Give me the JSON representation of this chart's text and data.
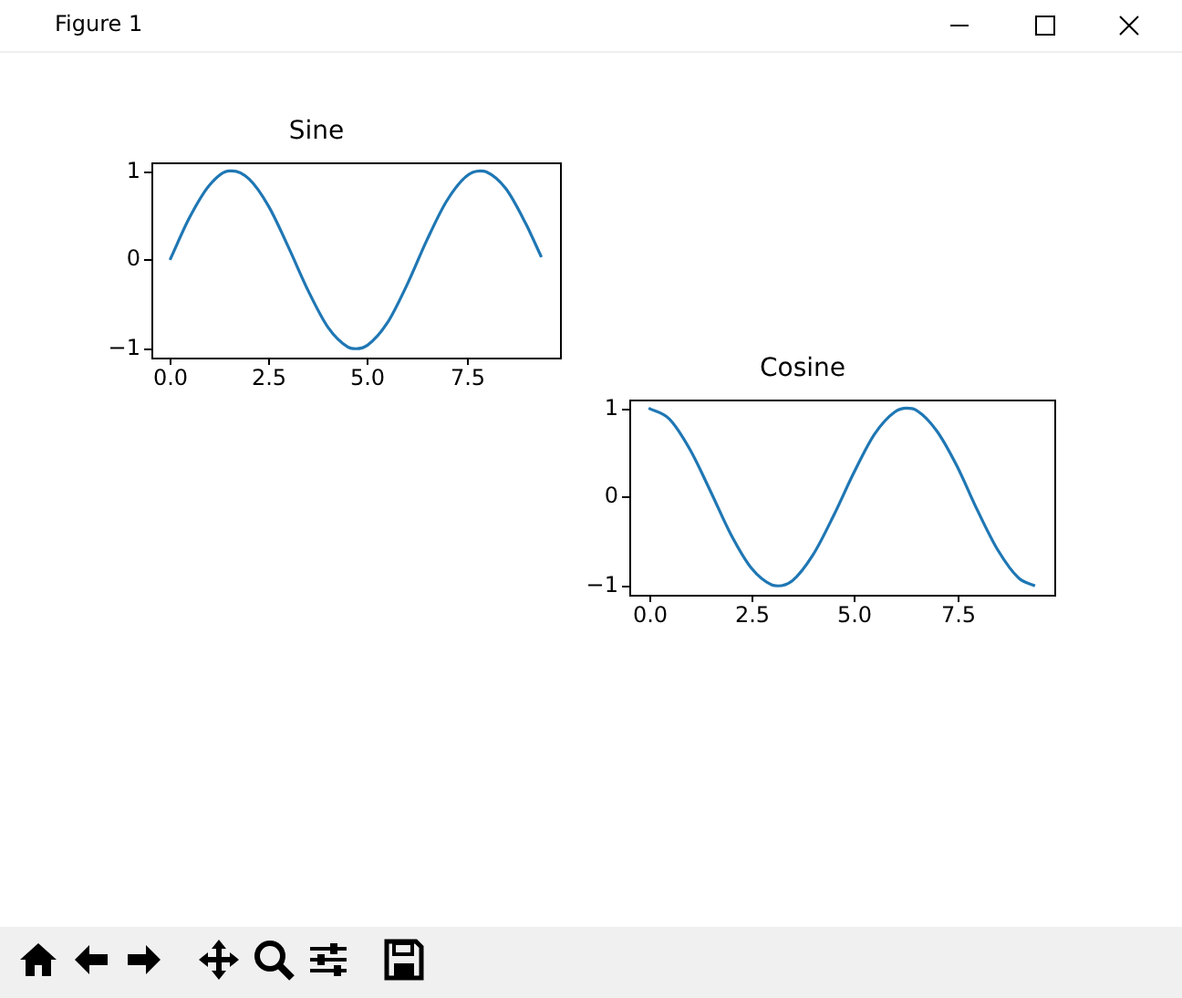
{
  "chart_data": [
    {
      "type": "line",
      "title": "Sine",
      "color": "#1f77b4",
      "annotations": [
        "Figure 1"
      ],
      "x": [
        0,
        0.5,
        1,
        1.5,
        1.57,
        2,
        2.5,
        3,
        3.5,
        4,
        4.5,
        4.71,
        5,
        5.5,
        6,
        6.5,
        7,
        7.5,
        7.85,
        8,
        8.5,
        9,
        9.4
      ],
      "values": [
        0,
        0.48,
        0.84,
        1.0,
        1.0,
        0.91,
        0.6,
        0.14,
        -0.35,
        -0.76,
        -0.98,
        -1.0,
        -0.96,
        -0.71,
        -0.28,
        0.22,
        0.66,
        0.94,
        1.0,
        0.99,
        0.8,
        0.41,
        0.03
      ],
      "xlim": [
        -0.47,
        9.87
      ],
      "xticks": [
        {
          "value": 0,
          "label": "0.0"
        },
        {
          "value": 2.5,
          "label": "2.5"
        },
        {
          "value": 5,
          "label": "5.0"
        },
        {
          "value": 7.5,
          "label": "7.5"
        }
      ],
      "ylim": [
        -1.1,
        1.1
      ],
      "yticks": [
        {
          "value": -1,
          "label": "−1"
        },
        {
          "value": 0,
          "label": "0"
        },
        {
          "value": 1,
          "label": "1"
        }
      ]
    },
    {
      "type": "line",
      "title": "Cosine",
      "color": "#1f77b4",
      "x": [
        0,
        0.5,
        1,
        1.5,
        2,
        2.5,
        3,
        3.14,
        3.5,
        4,
        4.5,
        5,
        5.5,
        6,
        6.28,
        6.5,
        7,
        7.5,
        8,
        8.5,
        9,
        9.4
      ],
      "values": [
        1.0,
        0.88,
        0.54,
        0.07,
        -0.42,
        -0.8,
        -0.99,
        -1.0,
        -0.94,
        -0.65,
        -0.21,
        0.28,
        0.71,
        0.96,
        1.0,
        0.98,
        0.75,
        0.35,
        -0.15,
        -0.6,
        -0.91,
        -1.0
      ],
      "xlim": [
        -0.47,
        9.87
      ],
      "xticks": [
        {
          "value": 0,
          "label": "0.0"
        },
        {
          "value": 2.5,
          "label": "2.5"
        },
        {
          "value": 5,
          "label": "5.0"
        },
        {
          "value": 7.5,
          "label": "7.5"
        }
      ],
      "ylim": [
        -1.1,
        1.1
      ],
      "yticks": [
        {
          "value": -1,
          "label": "−1"
        },
        {
          "value": 0,
          "label": "0"
        },
        {
          "value": 1,
          "label": "1"
        }
      ]
    }
  ]
}
